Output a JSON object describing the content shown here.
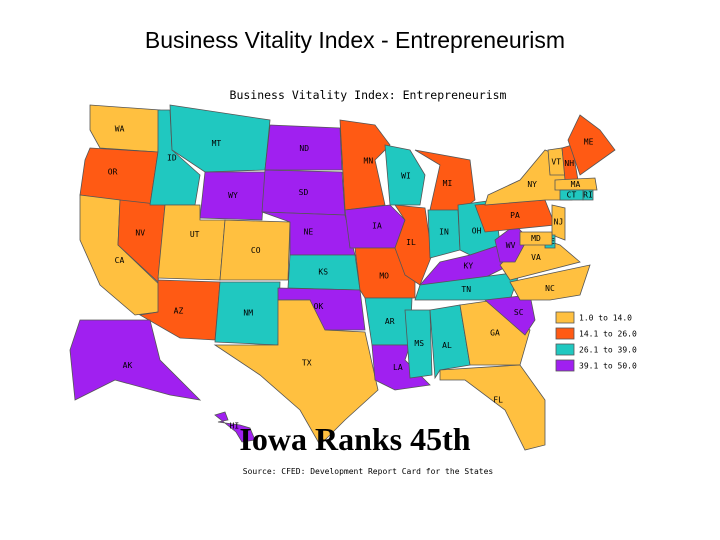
{
  "title": "Business Vitality Index - Entrepreneurism",
  "map": {
    "title": "Business Vitality Index: Entrepreneurism",
    "states": [
      {
        "abbr": "WA",
        "color": "#ffc040"
      },
      {
        "abbr": "OR",
        "color": "#ff5a14"
      },
      {
        "abbr": "CA",
        "color": "#ffc040"
      },
      {
        "abbr": "NV",
        "color": "#ff5a14"
      },
      {
        "abbr": "ID",
        "color": "#20c8c0"
      },
      {
        "abbr": "MT",
        "color": "#20c8c0"
      },
      {
        "abbr": "WY",
        "color": "#a020f0"
      },
      {
        "abbr": "UT",
        "color": "#ffc040"
      },
      {
        "abbr": "AZ",
        "color": "#ff5a14"
      },
      {
        "abbr": "CO",
        "color": "#ffc040"
      },
      {
        "abbr": "NM",
        "color": "#20c8c0"
      },
      {
        "abbr": "ND",
        "color": "#a020f0"
      },
      {
        "abbr": "SD",
        "color": "#a020f0"
      },
      {
        "abbr": "NE",
        "color": "#a020f0"
      },
      {
        "abbr": "KS",
        "color": "#20c8c0"
      },
      {
        "abbr": "OK",
        "color": "#a020f0"
      },
      {
        "abbr": "TX",
        "color": "#ffc040"
      },
      {
        "abbr": "MN",
        "color": "#ff5a14"
      },
      {
        "abbr": "IA",
        "color": "#a020f0"
      },
      {
        "abbr": "MO",
        "color": "#ff5a14"
      },
      {
        "abbr": "AR",
        "color": "#20c8c0"
      },
      {
        "abbr": "LA",
        "color": "#a020f0"
      },
      {
        "abbr": "WI",
        "color": "#20c8c0"
      },
      {
        "abbr": "IL",
        "color": "#ff5a14"
      },
      {
        "abbr": "MI",
        "color": "#ff5a14"
      },
      {
        "abbr": "IN",
        "color": "#20c8c0"
      },
      {
        "abbr": "OH",
        "color": "#20c8c0"
      },
      {
        "abbr": "KY",
        "color": "#a020f0"
      },
      {
        "abbr": "TN",
        "color": "#20c8c0"
      },
      {
        "abbr": "MS",
        "color": "#20c8c0"
      },
      {
        "abbr": "AL",
        "color": "#20c8c0"
      },
      {
        "abbr": "GA",
        "color": "#ffc040"
      },
      {
        "abbr": "FL",
        "color": "#ffc040"
      },
      {
        "abbr": "SC",
        "color": "#a020f0"
      },
      {
        "abbr": "NC",
        "color": "#ffc040"
      },
      {
        "abbr": "VA",
        "color": "#ffc040"
      },
      {
        "abbr": "WV",
        "color": "#a020f0"
      },
      {
        "abbr": "PA",
        "color": "#ff5a14"
      },
      {
        "abbr": "NY",
        "color": "#ffc040"
      },
      {
        "abbr": "VT",
        "color": "#ffc040"
      },
      {
        "abbr": "NH",
        "color": "#ff5a14"
      },
      {
        "abbr": "ME",
        "color": "#ff5a14"
      },
      {
        "abbr": "MA",
        "color": "#ffc040"
      },
      {
        "abbr": "RI",
        "color": "#20c8c0"
      },
      {
        "abbr": "CT",
        "color": "#20c8c0"
      },
      {
        "abbr": "NJ",
        "color": "#ffc040"
      },
      {
        "abbr": "DE",
        "color": "#20c8c0"
      },
      {
        "abbr": "MD",
        "color": "#ffc040"
      },
      {
        "abbr": "AK",
        "color": "#a020f0"
      },
      {
        "abbr": "HI",
        "color": "#a020f0"
      }
    ],
    "legend": [
      {
        "label": "1.0 to 14.0",
        "color": "#ffc040"
      },
      {
        "label": "14.1 to 26.0",
        "color": "#ff5a14"
      },
      {
        "label": "26.1 to 39.0",
        "color": "#20c8c0"
      },
      {
        "label": "39.1 to 50.0",
        "color": "#a020f0"
      }
    ],
    "headline": "Iowa Ranks 45th",
    "source": "Source: CFED: Development Report Card for the States"
  }
}
